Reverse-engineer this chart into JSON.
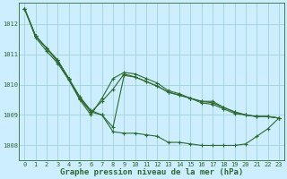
{
  "x": [
    0,
    1,
    2,
    3,
    4,
    5,
    6,
    7,
    8,
    9,
    10,
    11,
    12,
    13,
    14,
    15,
    16,
    17,
    18,
    19,
    20,
    21,
    22,
    23
  ],
  "series": [
    [
      1012.5,
      1011.6,
      1011.2,
      1010.8,
      1010.2,
      1009.6,
      1009.2,
      1008.8,
      1008.45,
      1008.45,
      1008.45,
      1008.4,
      1008.35,
      1008.1,
      1008.1,
      1008.1,
      1008.05,
      1008.0,
      1008.0,
      1008.0,
      1008.1,
      1008.35,
      1008.6,
      1008.9
    ],
    [
      1012.5,
      1011.6,
      1011.2,
      1010.8,
      1010.2,
      1009.55,
      1009.12,
      1009.05,
      1008.85,
      1010.3,
      1010.25,
      1010.1,
      1010.05,
      1009.8,
      1009.7,
      1009.6,
      1009.5,
      1009.5,
      1009.3,
      1009.2,
      1009.1,
      1009.0,
      1009.0,
      1008.9
    ],
    [
      1012.5,
      1011.6,
      1011.2,
      1010.75,
      1010.2,
      1009.55,
      1009.1,
      1009.0,
      1009.85,
      1010.35,
      1010.3,
      1010.15,
      1010.05,
      1009.8,
      1009.7,
      1009.6,
      1009.45,
      1009.45,
      1009.3,
      1009.2,
      1009.1,
      1009.0,
      1009.0,
      1008.9
    ],
    [
      1012.5,
      1011.55,
      1011.1,
      1010.7,
      1010.15,
      1009.5,
      1009.05,
      1009.45,
      1010.2,
      1010.4,
      1010.35,
      1010.2,
      1010.05,
      1009.8,
      1009.7,
      1009.55,
      1009.4,
      1009.4,
      1009.2,
      1009.1,
      1009.05,
      1008.95,
      1008.95,
      1008.9
    ]
  ],
  "line_color": "#2d6a2d",
  "marker": "+",
  "markersize": 3,
  "linewidth": 0.8,
  "bg_color": "#cceeff",
  "grid_color": "#99cccc",
  "xlabel": "Graphe pression niveau de la mer (hPa)",
  "xlabel_fontsize": 6.5,
  "tick_fontsize": 5.0,
  "ylim": [
    1007.5,
    1012.7
  ],
  "yticks": [
    1008,
    1009,
    1010,
    1011,
    1012
  ],
  "xticks": [
    0,
    1,
    2,
    3,
    4,
    5,
    6,
    7,
    8,
    9,
    10,
    11,
    12,
    13,
    14,
    15,
    16,
    17,
    18,
    19,
    20,
    21,
    22,
    23
  ]
}
